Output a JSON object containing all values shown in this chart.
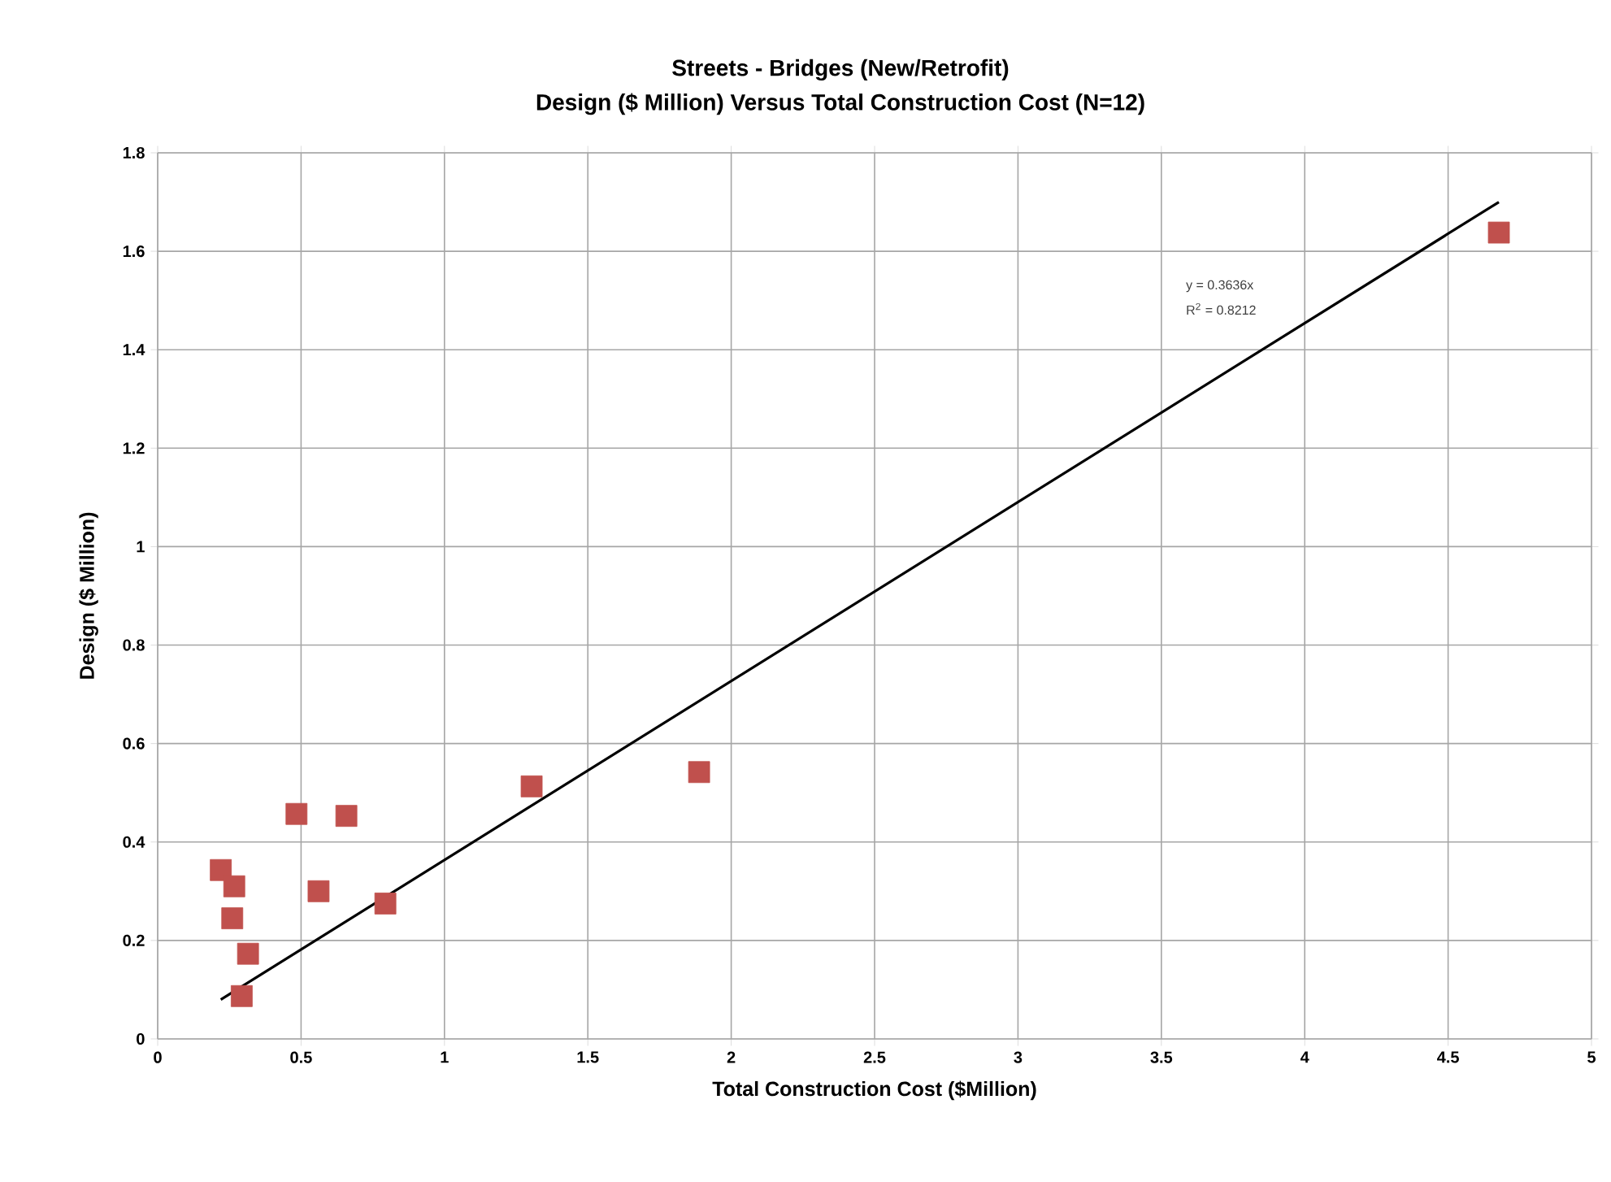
{
  "chart_data": {
    "type": "scatter",
    "title": "Streets - Bridges (New/Retrofit)",
    "subtitle": "Design  ($ Million) Versus Total Construction Cost  (N=12)",
    "xlabel": "Total Construction Cost ($Million)",
    "ylabel": "Design ($ Million)",
    "x": [
      0.22,
      0.267,
      0.26,
      0.315,
      0.293,
      0.484,
      0.658,
      0.561,
      0.794,
      1.304,
      1.888,
      4.677
    ],
    "series": [
      {
        "color": "#c0504d",
        "marker": "square",
        "values": [
          0.343,
          0.31,
          0.245,
          0.173,
          0.087,
          0.457,
          0.453,
          0.3,
          0.275,
          0.513,
          0.542,
          1.638
        ]
      },
      {
        "type": "line",
        "color": "#000000",
        "marker": "none",
        "line_style": "solid",
        "x": [
          0.22,
          4.677
        ],
        "values": [
          0.08,
          1.7
        ]
      }
    ],
    "annotations": [
      "y = 0.3636x",
      "R$^{2}$ = 0.8212"
    ],
    "xlim": [
      0,
      5
    ],
    "xticks": [
      0,
      0.5,
      1,
      1.5,
      2,
      2.5,
      3,
      3.5,
      4,
      4.5,
      5
    ],
    "ylim": [
      0,
      1.8
    ],
    "yticks": [
      0,
      0.2,
      0.4,
      0.6,
      0.8,
      1,
      1.2,
      1.4,
      1.6,
      1.8
    ],
    "grid": true
  }
}
